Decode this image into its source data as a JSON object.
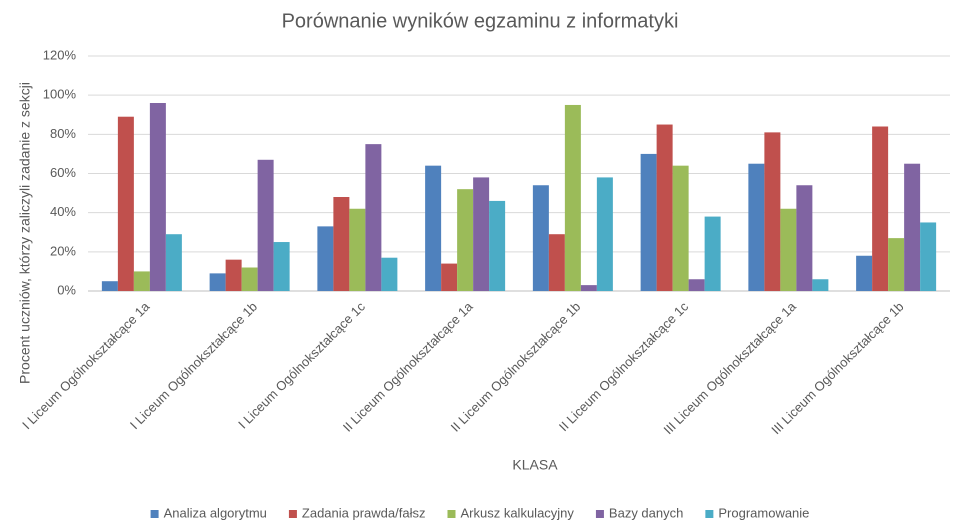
{
  "chart_data": {
    "type": "bar",
    "title": "Porównanie wyników egzaminu z informatyki",
    "x_label": "KLASA",
    "y_label": "Procent uczniów, którzy zaliczyli zadanie z sekcji",
    "categories": [
      "I Liceum Ogólnokształcące 1a",
      "I Liceum Ogólnokształcące 1b",
      "I Liceum Ogólnokształcące 1c",
      "II Liceum Ogólnokształcące 1a",
      "II Liceum Ogólnokształcące 1b",
      "II Liceum Ogólnokształcące 1c",
      "III Liceum Ogólnokształcące 1a",
      "III Liceum Ogólnokształcące 1b"
    ],
    "series": [
      {
        "name": "Analiza algorytmu",
        "color": "#4f81bd",
        "values": [
          5,
          9,
          33,
          64,
          54,
          70,
          65,
          18
        ]
      },
      {
        "name": "Zadania prawda/fałsz",
        "color": "#c0504d",
        "values": [
          89,
          16,
          48,
          14,
          29,
          85,
          81,
          84
        ]
      },
      {
        "name": "Arkusz kalkulacyjny",
        "color": "#9bbb59",
        "values": [
          10,
          12,
          42,
          52,
          95,
          64,
          42,
          27
        ]
      },
      {
        "name": "Bazy danych",
        "color": "#8064a2",
        "values": [
          96,
          67,
          75,
          58,
          3,
          6,
          54,
          65
        ]
      },
      {
        "name": "Programowanie",
        "color": "#4bacc6",
        "values": [
          29,
          25,
          17,
          46,
          58,
          38,
          6,
          35
        ]
      }
    ],
    "ylim": [
      0,
      120
    ],
    "yticks": [
      {
        "value": 0,
        "label": "0%"
      },
      {
        "value": 20,
        "label": "20%"
      },
      {
        "value": 40,
        "label": "40%"
      },
      {
        "value": 60,
        "label": "60%"
      },
      {
        "value": 80,
        "label": "80%"
      },
      {
        "value": 100,
        "label": "100%"
      },
      {
        "value": 120,
        "label": "120%"
      }
    ],
    "grid": true,
    "legend": "bottom"
  }
}
